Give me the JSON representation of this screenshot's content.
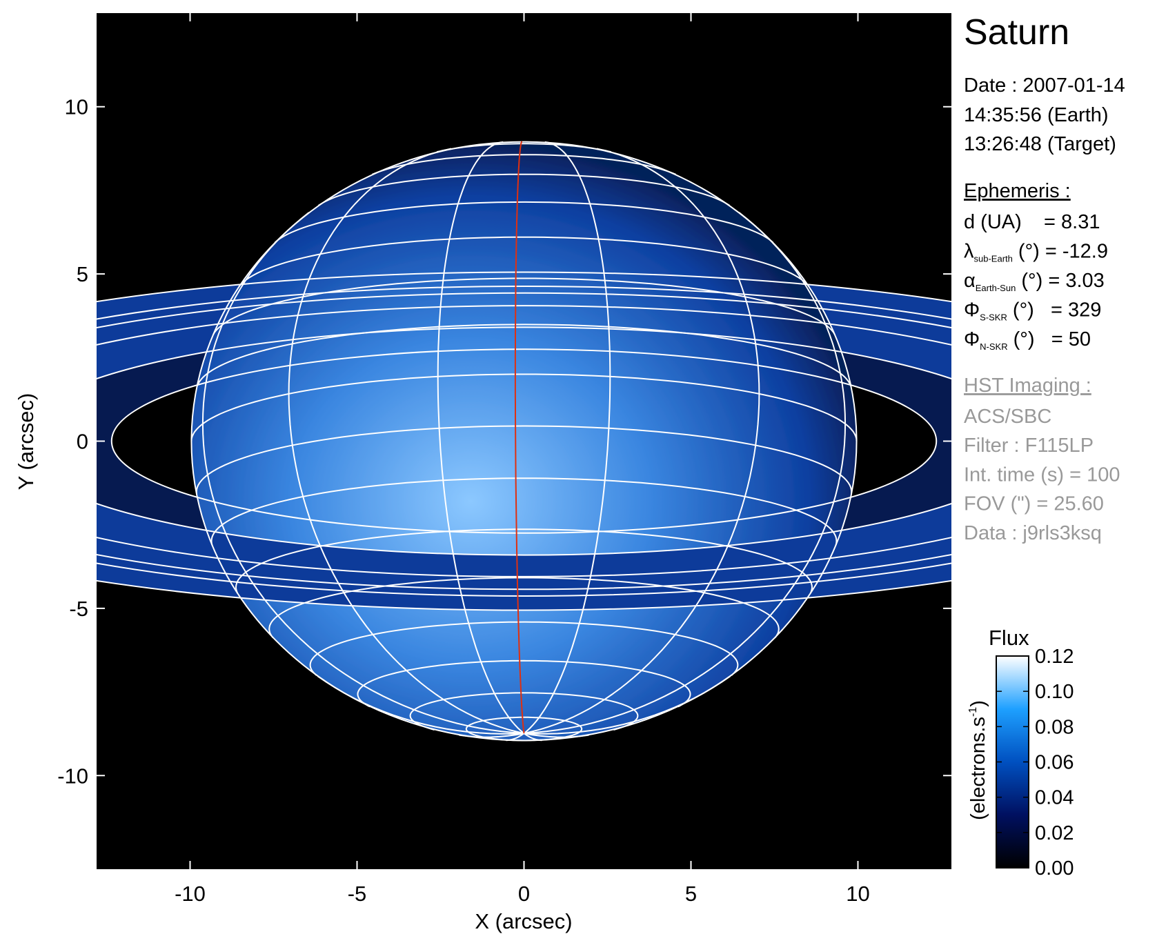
{
  "chart_data": {
    "type": "heatmap",
    "title": "Saturn",
    "xlabel": "X (arcsec)",
    "ylabel": "Y (arcsec)",
    "xlim": [
      -12.8,
      12.8
    ],
    "ylim": [
      -12.8,
      12.8
    ],
    "xticks": [
      "-10",
      "-5",
      "0",
      "5",
      "10"
    ],
    "yticks": [
      "-10",
      "-5",
      "0",
      "5",
      "10"
    ],
    "colormap": [
      "#000000",
      "#001060",
      "#0050c0",
      "#1ea0ff",
      "#ffffff"
    ],
    "colorbar": {
      "title": "Flux",
      "label": "(electrons.s",
      "label_sup": "-1",
      "label_end": ")",
      "range": [
        0.0,
        0.12
      ],
      "ticks": [
        "0.00",
        "0.02",
        "0.04",
        "0.06",
        "0.08",
        "0.10",
        "0.12"
      ]
    },
    "overlay_color_grid": "#ffffff",
    "overlay_color_meridian": "#e03010"
  },
  "info": {
    "date": "Date : 2007-01-14",
    "time_earth": "14:35:56 (Earth)",
    "time_target": "13:26:48 (Target)",
    "ephemeris_title": "Ephemeris :",
    "rows": [
      {
        "sym": "d (UA)",
        "sub": "",
        "rest": "    = 8.31"
      },
      {
        "sym": "λ",
        "sub": "sub-Earth",
        "rest": " (°) = -12.9"
      },
      {
        "sym": "α",
        "sub": "Earth-Sun",
        "rest": " (°) = 3.03"
      },
      {
        "sym": "Φ",
        "sub": "S-SKR",
        "rest": " (°)   = 329"
      },
      {
        "sym": "Φ",
        "sub": "N-SKR",
        "rest": " (°)   = 50"
      }
    ],
    "imaging_title": "HST Imaging :",
    "imaging": [
      "ACS/SBC",
      "Filter : F115LP",
      "Int. time (s) = 100",
      "FOV (\") = 25.60",
      "Data : j9rls3ksq"
    ]
  }
}
